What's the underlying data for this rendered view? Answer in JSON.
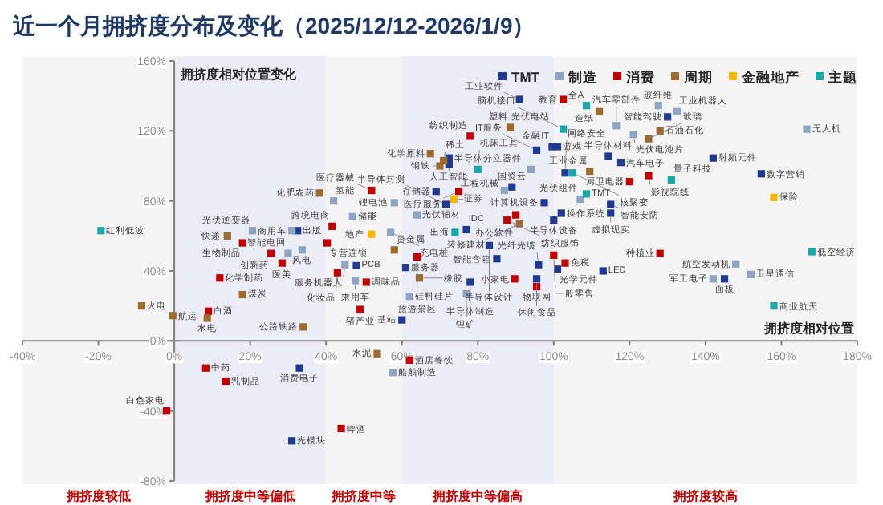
{
  "chart_data": {
    "type": "scatter",
    "title": "近一个月拥挤度分布及变化（2025/12/12-2026/1/9）",
    "xlabel": "拥挤度相对位置",
    "ylabel": "拥挤度相对位置变化",
    "marker": "square",
    "legend": "top right",
    "xlim": [
      -40,
      180
    ],
    "ylim": [
      -80,
      160
    ],
    "xticks": [
      {
        "value": -40,
        "label": "-40%"
      },
      {
        "value": -20,
        "label": "-20%"
      },
      {
        "value": 0,
        "label": "0%"
      },
      {
        "value": 20,
        "label": "20%"
      },
      {
        "value": 40,
        "label": "40%"
      },
      {
        "value": 60,
        "label": "60%"
      },
      {
        "value": 80,
        "label": "80%"
      },
      {
        "value": 100,
        "label": "100%"
      },
      {
        "value": 120,
        "label": "120%"
      },
      {
        "value": 140,
        "label": "140%"
      },
      {
        "value": 160,
        "label": "160%"
      },
      {
        "value": 180,
        "label": "180%"
      }
    ],
    "yticks": [
      {
        "value": -80,
        "label": "-80%"
      },
      {
        "value": -40,
        "label": "-40%"
      },
      {
        "value": 0,
        "label": "0%"
      },
      {
        "value": 40,
        "label": "40%"
      },
      {
        "value": 80,
        "label": "80%"
      },
      {
        "value": 120,
        "label": "120%"
      },
      {
        "value": 160,
        "label": "160%"
      }
    ],
    "bands": [
      {
        "axis": "x",
        "from": -40,
        "to": 0,
        "label": "拥挤度较低",
        "color": "#f4f4f4"
      },
      {
        "axis": "x",
        "from": 0,
        "to": 40,
        "label": "拥挤度中等偏低",
        "color": "#ececf6"
      },
      {
        "axis": "x",
        "from": 40,
        "to": 60,
        "label": "拥挤度中等",
        "color": "#f4f4f4"
      },
      {
        "axis": "x",
        "from": 60,
        "to": 100,
        "label": "拥挤度中等偏高",
        "color": "#ececf6"
      },
      {
        "axis": "x",
        "from": 100,
        "to": 180,
        "label": "拥挤度较高",
        "color": "#f4f4f4"
      }
    ],
    "series": [
      {
        "name": "TMT",
        "color": "#1f3a8f",
        "x": [
          91,
          95.5,
          99.6,
          101,
          72.4,
          72.4,
          69,
          71.6,
          89,
          97.5,
          103,
          117.7,
          114.4,
          130,
          142,
          154.7,
          115,
          115,
          102,
          100,
          77,
          83,
          85,
          96,
          101,
          113,
          78,
          95.5,
          145,
          32.5,
          48,
          61,
          60,
          33,
          31
        ],
        "values": [
          138,
          109,
          111,
          111,
          104.5,
          101,
          85.5,
          78,
          88,
          79,
          96,
          102,
          105.5,
          128,
          104.5,
          95.5,
          78,
          73,
          73,
          69,
          63.6,
          54.5,
          47,
          43.6,
          41,
          40,
          33.6,
          35.5,
          35.5,
          63,
          43,
          42,
          12,
          -15.5,
          -57
        ]
      },
      {
        "name": "制造",
        "color": "#8fa3c3",
        "x": [
          127.6,
          132.5,
          116.5,
          121,
          166.7,
          42,
          47,
          58,
          94,
          87,
          64,
          77,
          148,
          142,
          152,
          20.6,
          31,
          30,
          33.7,
          57,
          45,
          47.7,
          62,
          57.6,
          107
        ],
        "values": [
          134.5,
          131,
          123,
          118,
          121,
          80,
          71,
          79,
          98,
          86,
          72,
          27,
          44,
          35.5,
          38,
          63,
          63,
          50,
          52,
          62,
          43.6,
          34.5,
          25.5,
          -18,
          81
        ]
      },
      {
        "name": "消费",
        "color": "#c00000",
        "x": [
          102.5,
          78,
          52,
          75,
          90,
          87.7,
          120,
          125,
          128,
          100,
          103,
          89.7,
          95.5,
          41.6,
          18,
          25.5,
          28.4,
          40.3,
          43,
          64,
          50.6,
          49,
          12,
          9,
          62,
          8.3,
          13.6,
          -2,
          44
        ],
        "values": [
          138,
          117,
          86,
          85.5,
          72,
          69,
          91,
          94.5,
          50,
          49,
          44.5,
          35.5,
          31,
          65.5,
          56,
          50,
          44.5,
          56,
          39,
          48,
          33.6,
          18,
          36,
          17,
          -11,
          -15.5,
          -23,
          -40,
          -50
        ]
      },
      {
        "name": "周期",
        "color": "#9c6b30",
        "x": [
          112,
          128,
          125,
          88.5,
          38.3,
          67.5,
          71,
          70,
          109.5,
          91,
          14,
          58,
          64.6,
          34,
          18,
          8.7,
          -8.6,
          -0.4,
          53.5
        ],
        "values": [
          131,
          120,
          115.5,
          122,
          84.5,
          107,
          103,
          100,
          97,
          67,
          60,
          52,
          36,
          8,
          26.5,
          13,
          20,
          14.5,
          -7.3
        ]
      },
      {
        "name": "金融地产",
        "color": "#f5b800",
        "x": [
          158,
          73.7,
          52
        ],
        "values": [
          82,
          81,
          61
        ]
      },
      {
        "name": "主题",
        "color": "#1aa7a7",
        "x": [
          108.6,
          102.5,
          80,
          105,
          108.6,
          131,
          74,
          -19.3,
          168,
          158
        ],
        "values": [
          134.5,
          121,
          98,
          96,
          84,
          92,
          62,
          63,
          51,
          20
        ]
      }
    ],
    "annotations": [
      {
        "text": "工业软件",
        "x": 91,
        "y": 138
      },
      {
        "text": "IT服务",
        "x": 95.5,
        "y": 109
      },
      {
        "text": "金融IT",
        "x": 99.6,
        "y": 111
      },
      {
        "text": "游戏",
        "x": 101,
        "y": 111
      },
      {
        "text": "半导体分立器件",
        "x": 72.4,
        "y": 104.5
      },
      {
        "text": "人工智能",
        "x": 72.4,
        "y": 101
      },
      {
        "text": "存储器",
        "x": 69,
        "y": 85.5
      },
      {
        "text": "半导体封测",
        "x": 71.6,
        "y": 78
      },
      {
        "text": "国资云",
        "x": 89,
        "y": 88
      },
      {
        "text": "计算机设备",
        "x": 97.5,
        "y": 79
      },
      {
        "text": "网络安全",
        "x": 103,
        "y": 96
      },
      {
        "text": "汽车电子",
        "x": 117.7,
        "y": 102
      },
      {
        "text": "半导体材料",
        "x": 114.4,
        "y": 105.5
      },
      {
        "text": "智能驾驶",
        "x": 130,
        "y": 128
      },
      {
        "text": "射频元件",
        "x": 142,
        "y": 104.5
      },
      {
        "text": "数字营销",
        "x": 154.7,
        "y": 95.5
      },
      {
        "text": "智能安防",
        "x": 115,
        "y": 78
      },
      {
        "text": "虚拟现实",
        "x": 115,
        "y": 73
      },
      {
        "text": "操作系统",
        "x": 102,
        "y": 73
      },
      {
        "text": "半导体设备",
        "x": 100,
        "y": 69
      },
      {
        "text": "IDC",
        "x": 77,
        "y": 63.6
      },
      {
        "text": "半导体设计",
        "x": 83,
        "y": 54.5
      },
      {
        "text": "智能音箱",
        "x": 85,
        "y": 47
      },
      {
        "text": "光纤光缆",
        "x": 96,
        "y": 43.6
      },
      {
        "text": "光学元件",
        "x": 101,
        "y": 41
      },
      {
        "text": "LED",
        "x": 113,
        "y": 40
      },
      {
        "text": "半导体制造",
        "x": 78,
        "y": 33.6
      },
      {
        "text": "物联网",
        "x": 95.5,
        "y": 35.5
      },
      {
        "text": "面板",
        "x": 145,
        "y": 35.5
      },
      {
        "text": "出版",
        "x": 32.5,
        "y": 63
      },
      {
        "text": "PCB",
        "x": 48,
        "y": 43
      },
      {
        "text": "服务器",
        "x": 61,
        "y": 42
      },
      {
        "text": "基站",
        "x": 60,
        "y": 12
      },
      {
        "text": "消费电子",
        "x": 33,
        "y": -15.5
      },
      {
        "text": "光模块",
        "x": 31,
        "y": -57
      },
      {
        "text": "玻纤维",
        "x": 127.6,
        "y": 134.5
      },
      {
        "text": "工业机器人",
        "x": 132.5,
        "y": 131
      },
      {
        "text": "汽车零部件",
        "x": 116.5,
        "y": 123
      },
      {
        "text": "光伏电池片",
        "x": 121,
        "y": 118
      },
      {
        "text": "无人机",
        "x": 166.7,
        "y": 121
      },
      {
        "text": "氢能",
        "x": 42,
        "y": 80
      },
      {
        "text": "储能",
        "x": 47,
        "y": 71
      },
      {
        "text": "锂电池",
        "x": 58,
        "y": 79
      },
      {
        "text": "光伏电站",
        "x": 94,
        "y": 98
      },
      {
        "text": "工程机械",
        "x": 87,
        "y": 86
      },
      {
        "text": "光伏辅材",
        "x": 64,
        "y": 72
      },
      {
        "text": "锂矿",
        "x": 77,
        "y": 27
      },
      {
        "text": "航空发动机",
        "x": 148,
        "y": 44
      },
      {
        "text": "军工电子",
        "x": 142,
        "y": 35.5
      },
      {
        "text": "卫星通信",
        "x": 152,
        "y": 38
      },
      {
        "text": "光伏逆变器",
        "x": 20.6,
        "y": 63
      },
      {
        "text": "商用车",
        "x": 31,
        "y": 63
      },
      {
        "text": "智能电网",
        "x": 30,
        "y": 50
      },
      {
        "text": "风电",
        "x": 33.7,
        "y": 52
      },
      {
        "text": "充电桩",
        "x": 57,
        "y": 62
      },
      {
        "text": "服务机器人",
        "x": 45,
        "y": 43.6
      },
      {
        "text": "乘用车",
        "x": 47.7,
        "y": 34.5
      },
      {
        "text": "硅料硅片",
        "x": 62,
        "y": 25.5
      },
      {
        "text": "船舶制造",
        "x": 57.6,
        "y": -18
      },
      {
        "text": "光伏组件",
        "x": 107,
        "y": 81
      },
      {
        "text": "教育",
        "x": 102.5,
        "y": 138
      },
      {
        "text": "纺织制造",
        "x": 78,
        "y": 117
      },
      {
        "text": "医疗器械",
        "x": 52,
        "y": 86
      },
      {
        "text": "医疗服务",
        "x": 75,
        "y": 85.5
      },
      {
        "text": "办公软件",
        "x": 90,
        "y": 72
      },
      {
        "text": "纺织服饰",
        "x": 87.7,
        "y": 69
      },
      {
        "text": "厨卫电器",
        "x": 120,
        "y": 91
      },
      {
        "text": "影视院线",
        "x": 125,
        "y": 94.5
      },
      {
        "text": "种植业",
        "x": 128,
        "y": 50
      },
      {
        "text": "一般零售",
        "x": 100,
        "y": 49
      },
      {
        "text": "免税",
        "x": 103,
        "y": 44.5
      },
      {
        "text": "小家电",
        "x": 89.7,
        "y": 35.5
      },
      {
        "text": "休闲食品",
        "x": 95.5,
        "y": 31
      },
      {
        "text": "跨境电商",
        "x": 41.6,
        "y": 65.5
      },
      {
        "text": "生物制品",
        "x": 18,
        "y": 56
      },
      {
        "text": "创新药",
        "x": 25.5,
        "y": 50
      },
      {
        "text": "医美",
        "x": 28.4,
        "y": 44.5
      },
      {
        "text": "专营连锁",
        "x": 40.3,
        "y": 56
      },
      {
        "text": "化妆品",
        "x": 43,
        "y": 39
      },
      {
        "text": "旅游景区",
        "x": 64,
        "y": 48
      },
      {
        "text": "调味品",
        "x": 50.6,
        "y": 33.6
      },
      {
        "text": "猪产业",
        "x": 49,
        "y": 18
      },
      {
        "text": "化学制药",
        "x": 12,
        "y": 36
      },
      {
        "text": "白酒",
        "x": 9,
        "y": 17
      },
      {
        "text": "酒店餐饮",
        "x": 62,
        "y": -11
      },
      {
        "text": "中药",
        "x": 8.3,
        "y": -15.5
      },
      {
        "text": "乳制品",
        "x": 13.6,
        "y": -23
      },
      {
        "text": "白色家电",
        "x": -2,
        "y": -40
      },
      {
        "text": "啤酒",
        "x": 44,
        "y": -50
      },
      {
        "text": "造纸",
        "x": 112,
        "y": 131
      },
      {
        "text": "石油石化",
        "x": 128,
        "y": 120
      },
      {
        "text": "玻璃",
        "x": 125,
        "y": 115.5
      },
      {
        "text": "塑料",
        "x": 88.5,
        "y": 122
      },
      {
        "text": "化肥农药",
        "x": 38.3,
        "y": 84.5
      },
      {
        "text": "化学原料",
        "x": 67.5,
        "y": 107
      },
      {
        "text": "稀土",
        "x": 71,
        "y": 103
      },
      {
        "text": "钢铁",
        "x": 70,
        "y": 100
      },
      {
        "text": "工业金属",
        "x": 109.5,
        "y": 97
      },
      {
        "text": "装修建材",
        "x": 91,
        "y": 67
      },
      {
        "text": "快递",
        "x": 14,
        "y": 60
      },
      {
        "text": "贵金属",
        "x": 58,
        "y": 52
      },
      {
        "text": "橡胶",
        "x": 64.6,
        "y": 36
      },
      {
        "text": "公路铁路",
        "x": 34,
        "y": 8
      },
      {
        "text": "煤炭",
        "x": 18,
        "y": 26.5
      },
      {
        "text": "水电",
        "x": 8.7,
        "y": 13
      },
      {
        "text": "火电",
        "x": -8.6,
        "y": 20
      },
      {
        "text": "航运",
        "x": -0.4,
        "y": 14.5
      },
      {
        "text": "水泥",
        "x": 53.5,
        "y": -7.3
      },
      {
        "text": "保险",
        "x": 158,
        "y": 82
      },
      {
        "text": "证券",
        "x": 73.7,
        "y": 81
      },
      {
        "text": "地产",
        "x": 52,
        "y": 61
      },
      {
        "text": "全A",
        "x": 108.6,
        "y": 134.5
      },
      {
        "text": "脑机接口",
        "x": 102.5,
        "y": 121
      },
      {
        "text": "机床工具",
        "x": 80,
        "y": 98
      },
      {
        "text": "核聚变",
        "x": 105,
        "y": 96
      },
      {
        "text": "TMT",
        "x": 108.6,
        "y": 84
      },
      {
        "text": "量子科技",
        "x": 131,
        "y": 92
      },
      {
        "text": "出海",
        "x": 74,
        "y": 62
      },
      {
        "text": "红利低波",
        "x": -19.3,
        "y": 63
      },
      {
        "text": "低空经济",
        "x": 168,
        "y": 51
      },
      {
        "text": "商业航天",
        "x": 158,
        "y": 20
      }
    ]
  }
}
